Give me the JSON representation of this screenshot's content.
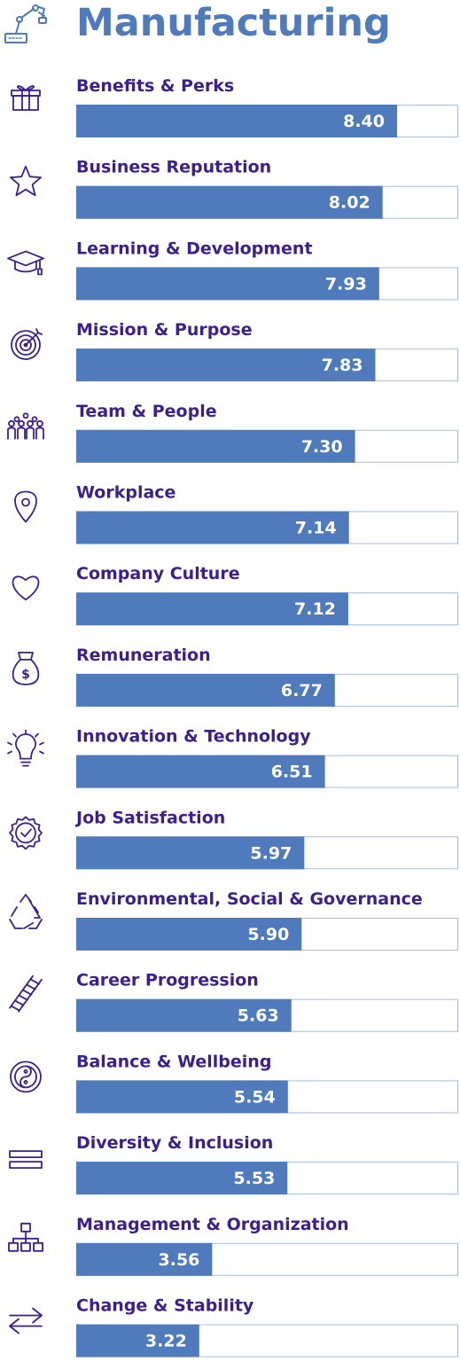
{
  "colors": {
    "title": "#4f7bbd",
    "label": "#3c1f8f",
    "bar": "#4f7bbd",
    "track_border": "#a9bddc",
    "value_text": "#ffffff",
    "icon": "#3c1f8f"
  },
  "title_icon": "robot-arm-icon",
  "chart_data": {
    "type": "bar",
    "orientation": "horizontal",
    "title": "Manufacturing",
    "xlim": [
      0,
      10
    ],
    "grid": false,
    "categories": [
      "Benefits & Perks",
      "Business Reputation",
      "Learning & Development",
      "Mission & Purpose",
      "Team & People",
      "Workplace",
      "Company Culture",
      "Remuneration",
      "Innovation & Technology",
      "Job Satisfaction",
      "Environmental, Social & Governance",
      "Career Progression",
      "Balance & Wellbeing",
      "Diversity & Inclusion",
      "Management & Organization",
      "Change & Stability"
    ],
    "values": [
      8.4,
      8.02,
      7.93,
      7.83,
      7.3,
      7.14,
      7.12,
      6.77,
      6.51,
      5.97,
      5.9,
      5.63,
      5.54,
      5.53,
      3.56,
      3.22
    ],
    "value_labels": [
      "8.40",
      "8.02",
      "7.93",
      "7.83",
      "7.30",
      "7.14",
      "7.12",
      "6.77",
      "6.51",
      "5.97",
      "5.90",
      "5.63",
      "5.54",
      "5.53",
      "3.56",
      "3.22"
    ],
    "icons": [
      "gift-icon",
      "star-icon",
      "graduation-cap-icon",
      "target-icon",
      "team-icon",
      "location-pin-icon",
      "heart-icon",
      "money-bag-icon",
      "lightbulb-icon",
      "badge-check-icon",
      "recycle-icon",
      "ladder-icon",
      "yin-yang-icon",
      "equals-icon",
      "org-chart-icon",
      "swap-arrows-icon"
    ]
  }
}
